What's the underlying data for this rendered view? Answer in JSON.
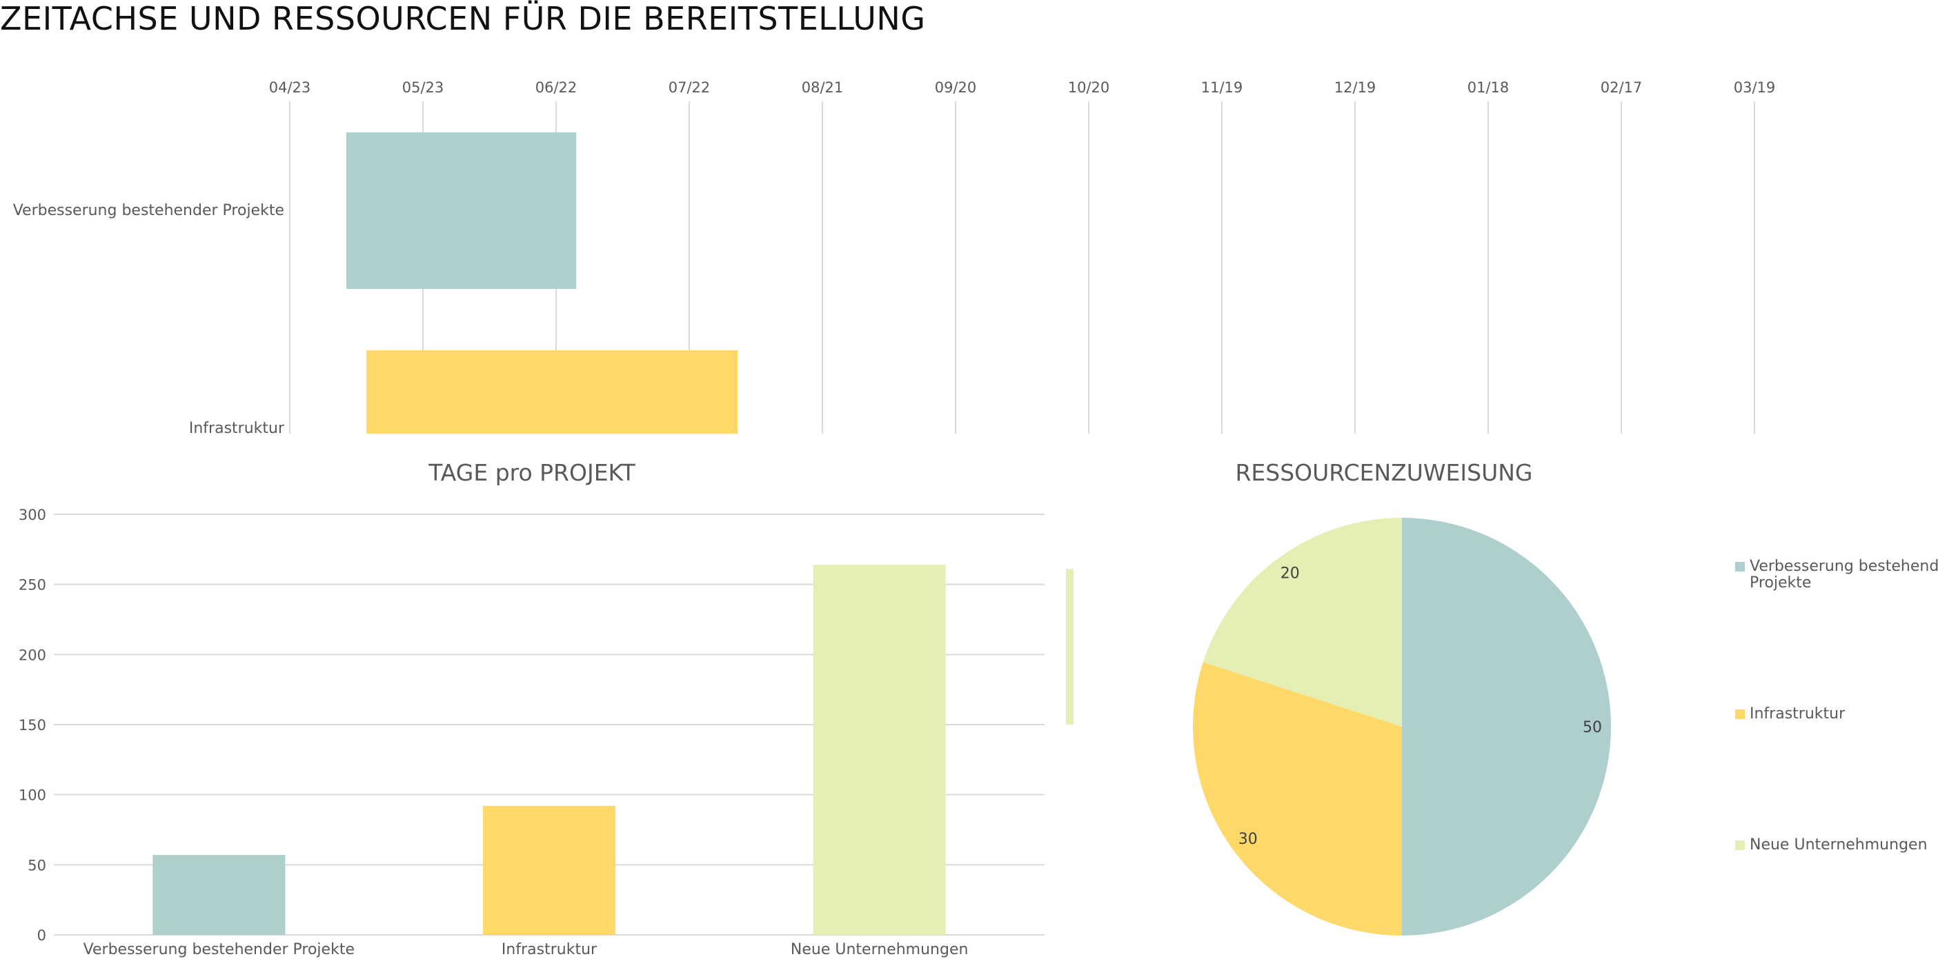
{
  "title": "ZEITACHSE UND RESSOURCEN FÜR DIE BEREITSTELLUNG",
  "colors": {
    "teal": "#aecfcd",
    "yellow": "#fed96a",
    "lime": "#e3efb3",
    "grid": "#d9d9d9",
    "text": "#595959"
  },
  "chart_data": [
    {
      "type": "bar",
      "orientation": "horizontal",
      "title": "",
      "x_ticks": [
        "04/23",
        "05/23",
        "06/22",
        "07/22",
        "08/21",
        "09/20",
        "10/20",
        "11/19",
        "12/19",
        "01/18",
        "02/17",
        "03/19"
      ],
      "categories": [
        "Verbesserung bestehender Projekte",
        "Infrastruktur"
      ],
      "bars": [
        {
          "category": "Verbesserung bestehender Projekte",
          "start": "2016-05-07",
          "end": "2016-07-03",
          "color": "#aecfcd"
        },
        {
          "category": "Infrastruktur",
          "start": "2016-05-12",
          "end": "2016-08-12",
          "color": "#fed96a"
        }
      ]
    },
    {
      "type": "bar",
      "title": "TAGE pro PROJEKT",
      "categories": [
        "Verbesserung bestehender Projekte",
        "Infrastruktur",
        "Neue Unternehmungen"
      ],
      "values": [
        57,
        92,
        264
      ],
      "colors": [
        "#aecfcd",
        "#fed96a",
        "#e3efb3"
      ],
      "ylim": [
        0,
        300
      ],
      "y_ticks": [
        0,
        50,
        100,
        150,
        200,
        250,
        300
      ],
      "grid": true
    },
    {
      "type": "pie",
      "title": "RESSOURCENZUWEISUNG",
      "labels": [
        "Verbesserung bestehender Projekte",
        "Infrastruktur",
        "Neue Unternehmungen"
      ],
      "legend_labels": [
        [
          "Verbesserung bestehender",
          "Projekte"
        ],
        [
          "Infrastruktur"
        ],
        [
          "Neue Unternehmungen"
        ]
      ],
      "values": [
        50,
        30,
        20
      ],
      "colors": [
        "#aecfcd",
        "#fed96a",
        "#e3efb3"
      ],
      "legend": "right"
    }
  ]
}
